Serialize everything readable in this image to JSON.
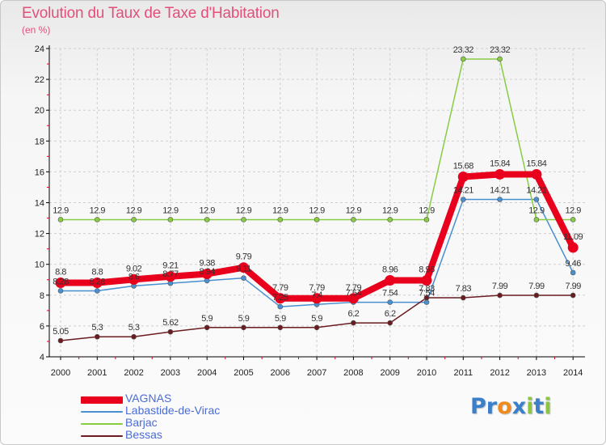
{
  "title": "Evolution du Taux de Taxe d'Habitation",
  "unit": "(en %)",
  "logo": {
    "text": "Proxiti",
    "letters": [
      {
        "ch": "P",
        "color": "#3a7fc9"
      },
      {
        "ch": "r",
        "color": "#3a7fc9"
      },
      {
        "ch": "o",
        "color": "#f08a1c"
      },
      {
        "ch": "x",
        "color": "#3a7fc9"
      },
      {
        "ch": "i",
        "color": "#8cc63f"
      },
      {
        "ch": "t",
        "color": "#3a7fc9"
      },
      {
        "ch": "i",
        "color": "#8cc63f"
      }
    ]
  },
  "chart_data": {
    "type": "line",
    "title": "Evolution du Taux de Taxe d'Habitation",
    "ylabel": "(en %)",
    "xlabel": "",
    "x": [
      "2000",
      "2001",
      "2002",
      "2003",
      "2004",
      "2005",
      "2006",
      "2007",
      "2008",
      "2009",
      "2010",
      "2011",
      "2012",
      "2013",
      "2014"
    ],
    "ylim": [
      4,
      24
    ],
    "yticks": [
      4,
      6,
      8,
      10,
      12,
      14,
      16,
      18,
      20,
      22,
      24
    ],
    "grid": true,
    "legend_position": "bottom-left",
    "series": [
      {
        "name": "VAGNAS",
        "color": "#e8001c",
        "highlight": true,
        "values": [
          8.8,
          8.8,
          9.02,
          9.21,
          9.38,
          9.79,
          7.79,
          7.79,
          7.79,
          8.96,
          8.96,
          15.68,
          15.84,
          15.84,
          11.09
        ],
        "labels": [
          "8.8",
          "8.8",
          "9.02",
          "9.21",
          "9.38",
          "9.79",
          "7.79",
          "7.79",
          "7.79",
          "8.96",
          "8.96",
          "15.68",
          "15.84",
          "15.84",
          "11.09"
        ]
      },
      {
        "name": "Labastide-de-Virac",
        "color": "#4a90d0",
        "highlight": false,
        "values": [
          8.28,
          8.28,
          8.6,
          8.77,
          8.94,
          9.11,
          7.25,
          7.4,
          7.54,
          7.54,
          7.54,
          14.21,
          14.21,
          14.21,
          9.46
        ],
        "labels": [
          "8.28",
          "8.28",
          "8.6",
          "8.77",
          "8.94",
          "9.11",
          "7.25",
          "7.4",
          "7.54",
          "7.54",
          "7.54",
          "14.21",
          "14.21",
          "14.21",
          "9.46"
        ]
      },
      {
        "name": "Barjac",
        "color": "#88cc44",
        "highlight": false,
        "values": [
          12.9,
          12.9,
          12.9,
          12.9,
          12.9,
          12.9,
          12.9,
          12.9,
          12.9,
          12.9,
          12.9,
          23.32,
          23.32,
          12.9,
          12.9
        ],
        "labels": [
          "12.9",
          "12.9",
          "12.9",
          "12.9",
          "12.9",
          "12.9",
          "12.9",
          "12.9",
          "12.9",
          "12.9",
          "12.9",
          "23.32",
          "23.32",
          "12.9",
          "12.9"
        ]
      },
      {
        "name": "Bessas",
        "color": "#6b1c20",
        "highlight": false,
        "values": [
          5.05,
          5.3,
          5.3,
          5.62,
          5.9,
          5.9,
          5.9,
          5.9,
          6.2,
          6.2,
          7.83,
          7.83,
          7.99,
          7.99,
          7.99
        ],
        "labels": [
          "5.05",
          "5.3",
          "5.3",
          "5.62",
          "5.9",
          "5.9",
          "5.9",
          "5.9",
          "6.2",
          "6.2",
          "7.83",
          "7.83",
          "7.99",
          "7.99",
          "7.99"
        ]
      }
    ]
  }
}
